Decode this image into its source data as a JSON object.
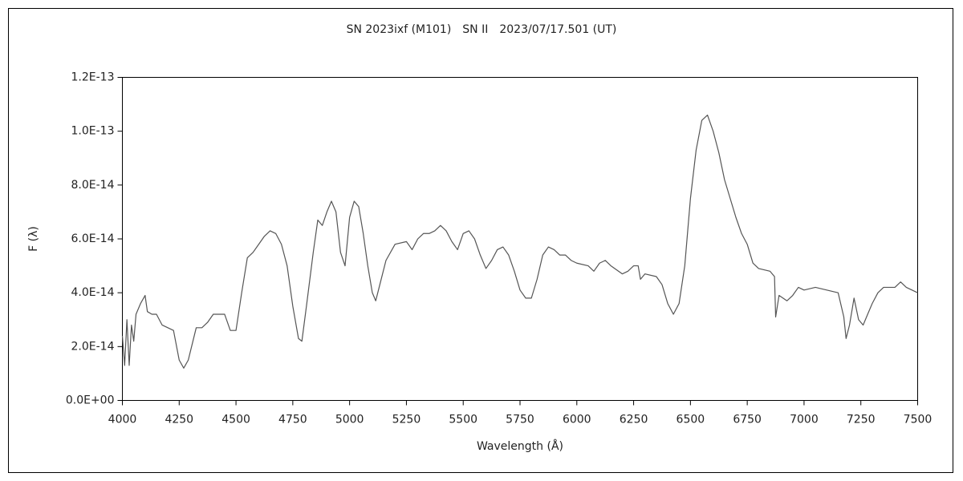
{
  "chart_data": {
    "type": "line",
    "title": "SN 2023ixf (M101)　SN II　2023/07/17.501 (UT)",
    "x_label": "Wavelength (Å)",
    "y_label": "F (λ)",
    "color": "#555555",
    "grid": false,
    "xlim": [
      4000,
      7500
    ],
    "xticks": [
      4000,
      4250,
      4500,
      4750,
      5000,
      5250,
      5500,
      5750,
      6000,
      6250,
      6500,
      6750,
      7000,
      7250,
      7500
    ],
    "ylim": [
      0,
      1.2e-13
    ],
    "yticks": [
      {
        "value": 0,
        "label": "0.0E+00"
      },
      {
        "value": 2e-14,
        "label": "2.0E-14"
      },
      {
        "value": 4e-14,
        "label": "4.0E-14"
      },
      {
        "value": 6e-14,
        "label": "6.0E-14"
      },
      {
        "value": 8e-14,
        "label": "8.0E-14"
      },
      {
        "value": 1e-13,
        "label": "1.0E-13"
      },
      {
        "value": 1.2e-13,
        "label": "1.2E-13"
      }
    ],
    "x": [
      4000,
      4010,
      4020,
      4030,
      4040,
      4050,
      4060,
      4080,
      4100,
      4110,
      4130,
      4150,
      4175,
      4200,
      4225,
      4250,
      4270,
      4290,
      4325,
      4350,
      4375,
      4400,
      4425,
      4450,
      4475,
      4500,
      4525,
      4550,
      4575,
      4600,
      4625,
      4650,
      4675,
      4700,
      4725,
      4750,
      4775,
      4790,
      4810,
      4840,
      4860,
      4880,
      4900,
      4920,
      4940,
      4960,
      4980,
      5000,
      5020,
      5040,
      5060,
      5080,
      5100,
      5115,
      5130,
      5160,
      5200,
      5250,
      5275,
      5300,
      5325,
      5350,
      5375,
      5400,
      5425,
      5450,
      5475,
      5500,
      5525,
      5550,
      5575,
      5600,
      5625,
      5650,
      5675,
      5700,
      5725,
      5750,
      5775,
      5800,
      5825,
      5850,
      5875,
      5900,
      5925,
      5950,
      5975,
      6000,
      6050,
      6075,
      6100,
      6125,
      6150,
      6200,
      6225,
      6250,
      6270,
      6280,
      6300,
      6350,
      6375,
      6400,
      6425,
      6450,
      6475,
      6500,
      6525,
      6550,
      6575,
      6600,
      6625,
      6650,
      6675,
      6700,
      6725,
      6750,
      6775,
      6800,
      6850,
      6870,
      6875,
      6890,
      6925,
      6950,
      6975,
      7000,
      7050,
      7100,
      7150,
      7175,
      7185,
      7200,
      7220,
      7240,
      7260,
      7280,
      7300,
      7325,
      7350,
      7400,
      7425,
      7450,
      7475,
      7500
    ],
    "values": [
      2.4e-14,
      1.3e-14,
      3e-14,
      1.3e-14,
      2.8e-14,
      2.2e-14,
      3.2e-14,
      3.6e-14,
      3.9e-14,
      3.3e-14,
      3.2e-14,
      3.2e-14,
      2.8e-14,
      2.7e-14,
      2.6e-14,
      1.5e-14,
      1.2e-14,
      1.5e-14,
      2.7e-14,
      2.7e-14,
      2.9e-14,
      3.2e-14,
      3.2e-14,
      3.2e-14,
      2.6e-14,
      2.6e-14,
      4e-14,
      5.3e-14,
      5.5e-14,
      5.8e-14,
      6.1e-14,
      6.3e-14,
      6.2e-14,
      5.8e-14,
      5e-14,
      3.5e-14,
      2.3e-14,
      2.2e-14,
      3.5e-14,
      5.5e-14,
      6.7e-14,
      6.5e-14,
      7e-14,
      7.4e-14,
      7e-14,
      5.5e-14,
      5e-14,
      6.8e-14,
      7.4e-14,
      7.2e-14,
      6.2e-14,
      5e-14,
      4e-14,
      3.7e-14,
      4.2e-14,
      5.2e-14,
      5.8e-14,
      5.9e-14,
      5.6e-14,
      6e-14,
      6.2e-14,
      6.2e-14,
      6.3e-14,
      6.5e-14,
      6.3e-14,
      5.9e-14,
      5.6e-14,
      6.2e-14,
      6.3e-14,
      6e-14,
      5.4e-14,
      4.9e-14,
      5.2e-14,
      5.6e-14,
      5.7e-14,
      5.4e-14,
      4.8e-14,
      4.1e-14,
      3.8e-14,
      3.8e-14,
      4.5e-14,
      5.4e-14,
      5.7e-14,
      5.6e-14,
      5.4e-14,
      5.4e-14,
      5.2e-14,
      5.1e-14,
      5e-14,
      4.8e-14,
      5.1e-14,
      5.2e-14,
      5e-14,
      4.7e-14,
      4.8e-14,
      5e-14,
      5e-14,
      4.5e-14,
      4.7e-14,
      4.6e-14,
      4.3e-14,
      3.6e-14,
      3.2e-14,
      3.6e-14,
      5e-14,
      7.5e-14,
      9.3e-14,
      1.04e-13,
      1.06e-13,
      1e-13,
      9.2e-14,
      8.2e-14,
      7.5e-14,
      6.8e-14,
      6.2e-14,
      5.8e-14,
      5.1e-14,
      4.9e-14,
      4.8e-14,
      4.6e-14,
      3.1e-14,
      3.9e-14,
      3.7e-14,
      3.9e-14,
      4.2e-14,
      4.1e-14,
      4.2e-14,
      4.1e-14,
      4e-14,
      3.1e-14,
      2.3e-14,
      2.8e-14,
      3.8e-14,
      3e-14,
      2.8e-14,
      3.2e-14,
      3.6e-14,
      4e-14,
      4.2e-14,
      4.2e-14,
      4.4e-14,
      4.2e-14,
      4.1e-14,
      4e-14
    ]
  }
}
